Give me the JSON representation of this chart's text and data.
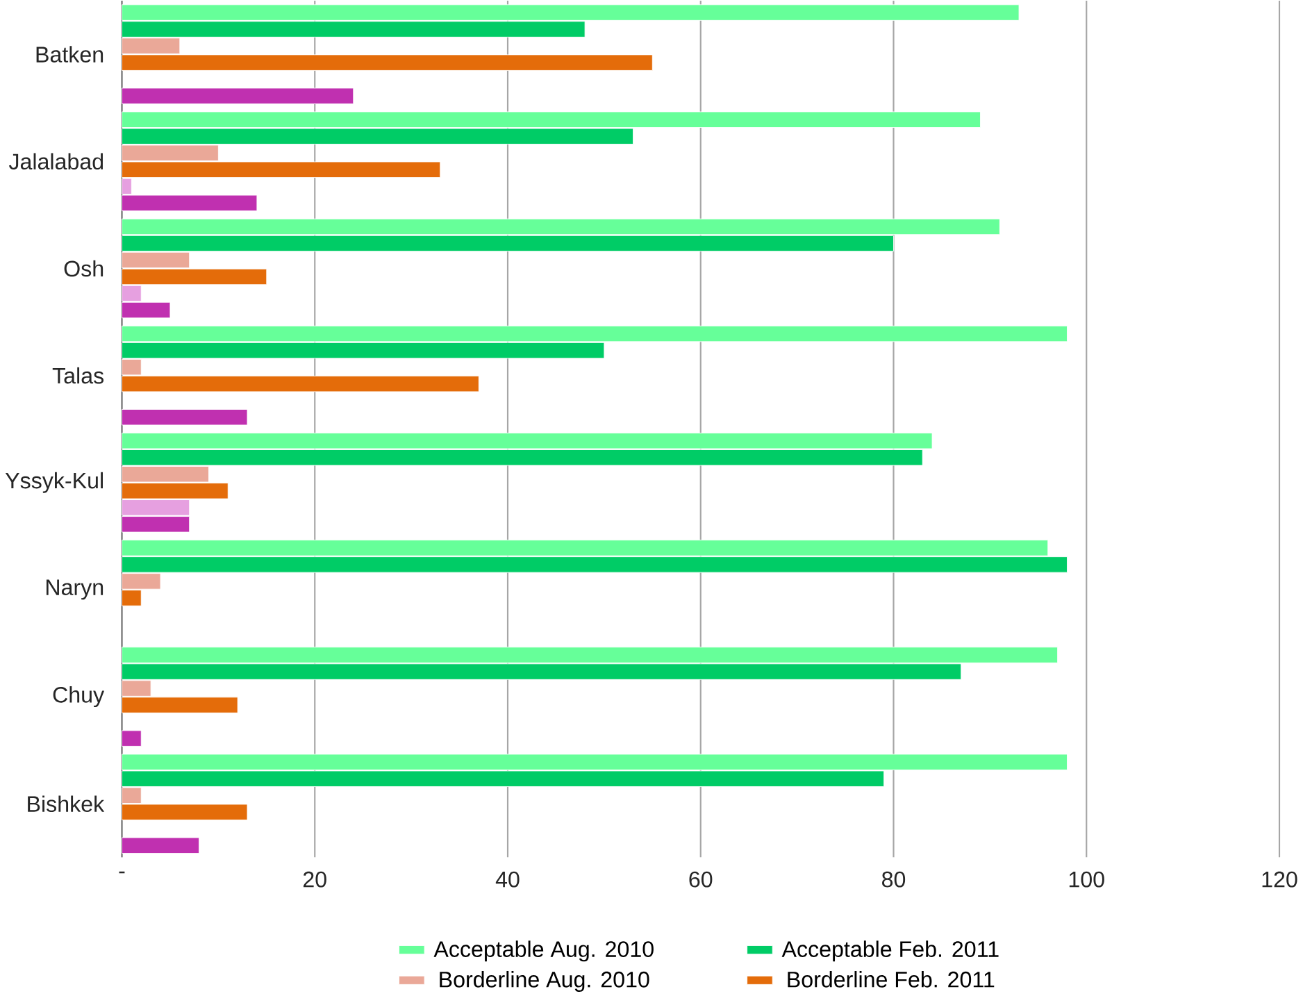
{
  "chart_data": {
    "type": "bar",
    "orientation": "horizontal",
    "categories": [
      "Batken",
      "Jalalabad",
      "Osh",
      "Talas",
      "Yssyk-Kul",
      "Naryn",
      "Chuy",
      "Bishkek"
    ],
    "series": [
      {
        "name": "Acceptable Aug. 2010",
        "color": "#66ff99",
        "values": [
          93,
          89,
          91,
          98,
          84,
          96,
          97,
          98
        ]
      },
      {
        "name": "Acceptable Feb. 2011",
        "color": "#00cc66",
        "values": [
          48,
          53,
          80,
          50,
          83,
          98,
          87,
          79
        ]
      },
      {
        "name": "Borderline Aug. 2010",
        "color": "#eaa898",
        "values": [
          6,
          10,
          7,
          2,
          9,
          4,
          3,
          2
        ]
      },
      {
        "name": "Borderline Feb. 2011",
        "color": "#e46c0a",
        "values": [
          55,
          33,
          15,
          37,
          11,
          2,
          12,
          13
        ]
      },
      {
        "color": "#e6a0e0",
        "values": [
          null,
          1,
          2,
          null,
          7,
          null,
          null,
          null
        ]
      },
      {
        "color": "#c030b0",
        "values": [
          24,
          14,
          5,
          13,
          7,
          null,
          2,
          8
        ]
      }
    ],
    "xlim": [
      0,
      120
    ],
    "xticks": [
      {
        "value": 0,
        "label": "-"
      },
      20,
      40,
      60,
      80,
      100,
      120
    ],
    "grid": "x",
    "legend": "bottom"
  }
}
